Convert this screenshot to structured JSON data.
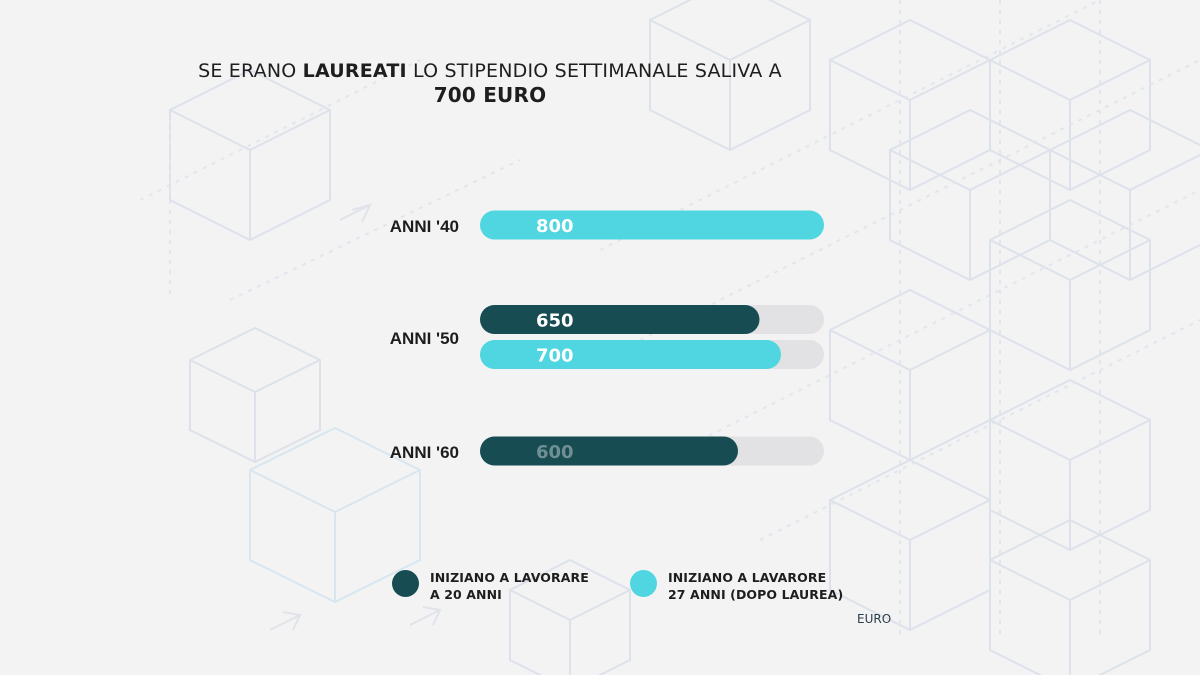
{
  "title": {
    "prefix": "SE ERANO ",
    "bold": "LAUREATI",
    "suffix": " LO STIPENDIO SETTIMANALE SALIVA A",
    "line2": "700 EURO"
  },
  "colors": {
    "dark": "#174c52",
    "light": "#4fd6e0",
    "track": "#e2e2e4",
    "label_white": "#ffffff",
    "label_faded": "#6f8f92"
  },
  "chart_data": {
    "type": "bar",
    "orientation": "horizontal",
    "unit": "EURO",
    "xlim": [
      0,
      800
    ],
    "groups": [
      {
        "label": "ANNI '40",
        "bars": [
          {
            "series": "light",
            "value": 800
          }
        ]
      },
      {
        "label": "ANNI '50",
        "bars": [
          {
            "series": "dark",
            "value": 650
          },
          {
            "series": "light",
            "value": 700
          }
        ]
      },
      {
        "label": "ANNI '60",
        "bars": [
          {
            "series": "dark",
            "value": 600
          }
        ]
      }
    ],
    "series": [
      {
        "id": "dark",
        "name": "INIZIANO A LAVORARE\nA 20 ANNI"
      },
      {
        "id": "light",
        "name": "INIZIANO A LAVARORE\n27 ANNI (DOPO LAUREA)"
      }
    ]
  }
}
